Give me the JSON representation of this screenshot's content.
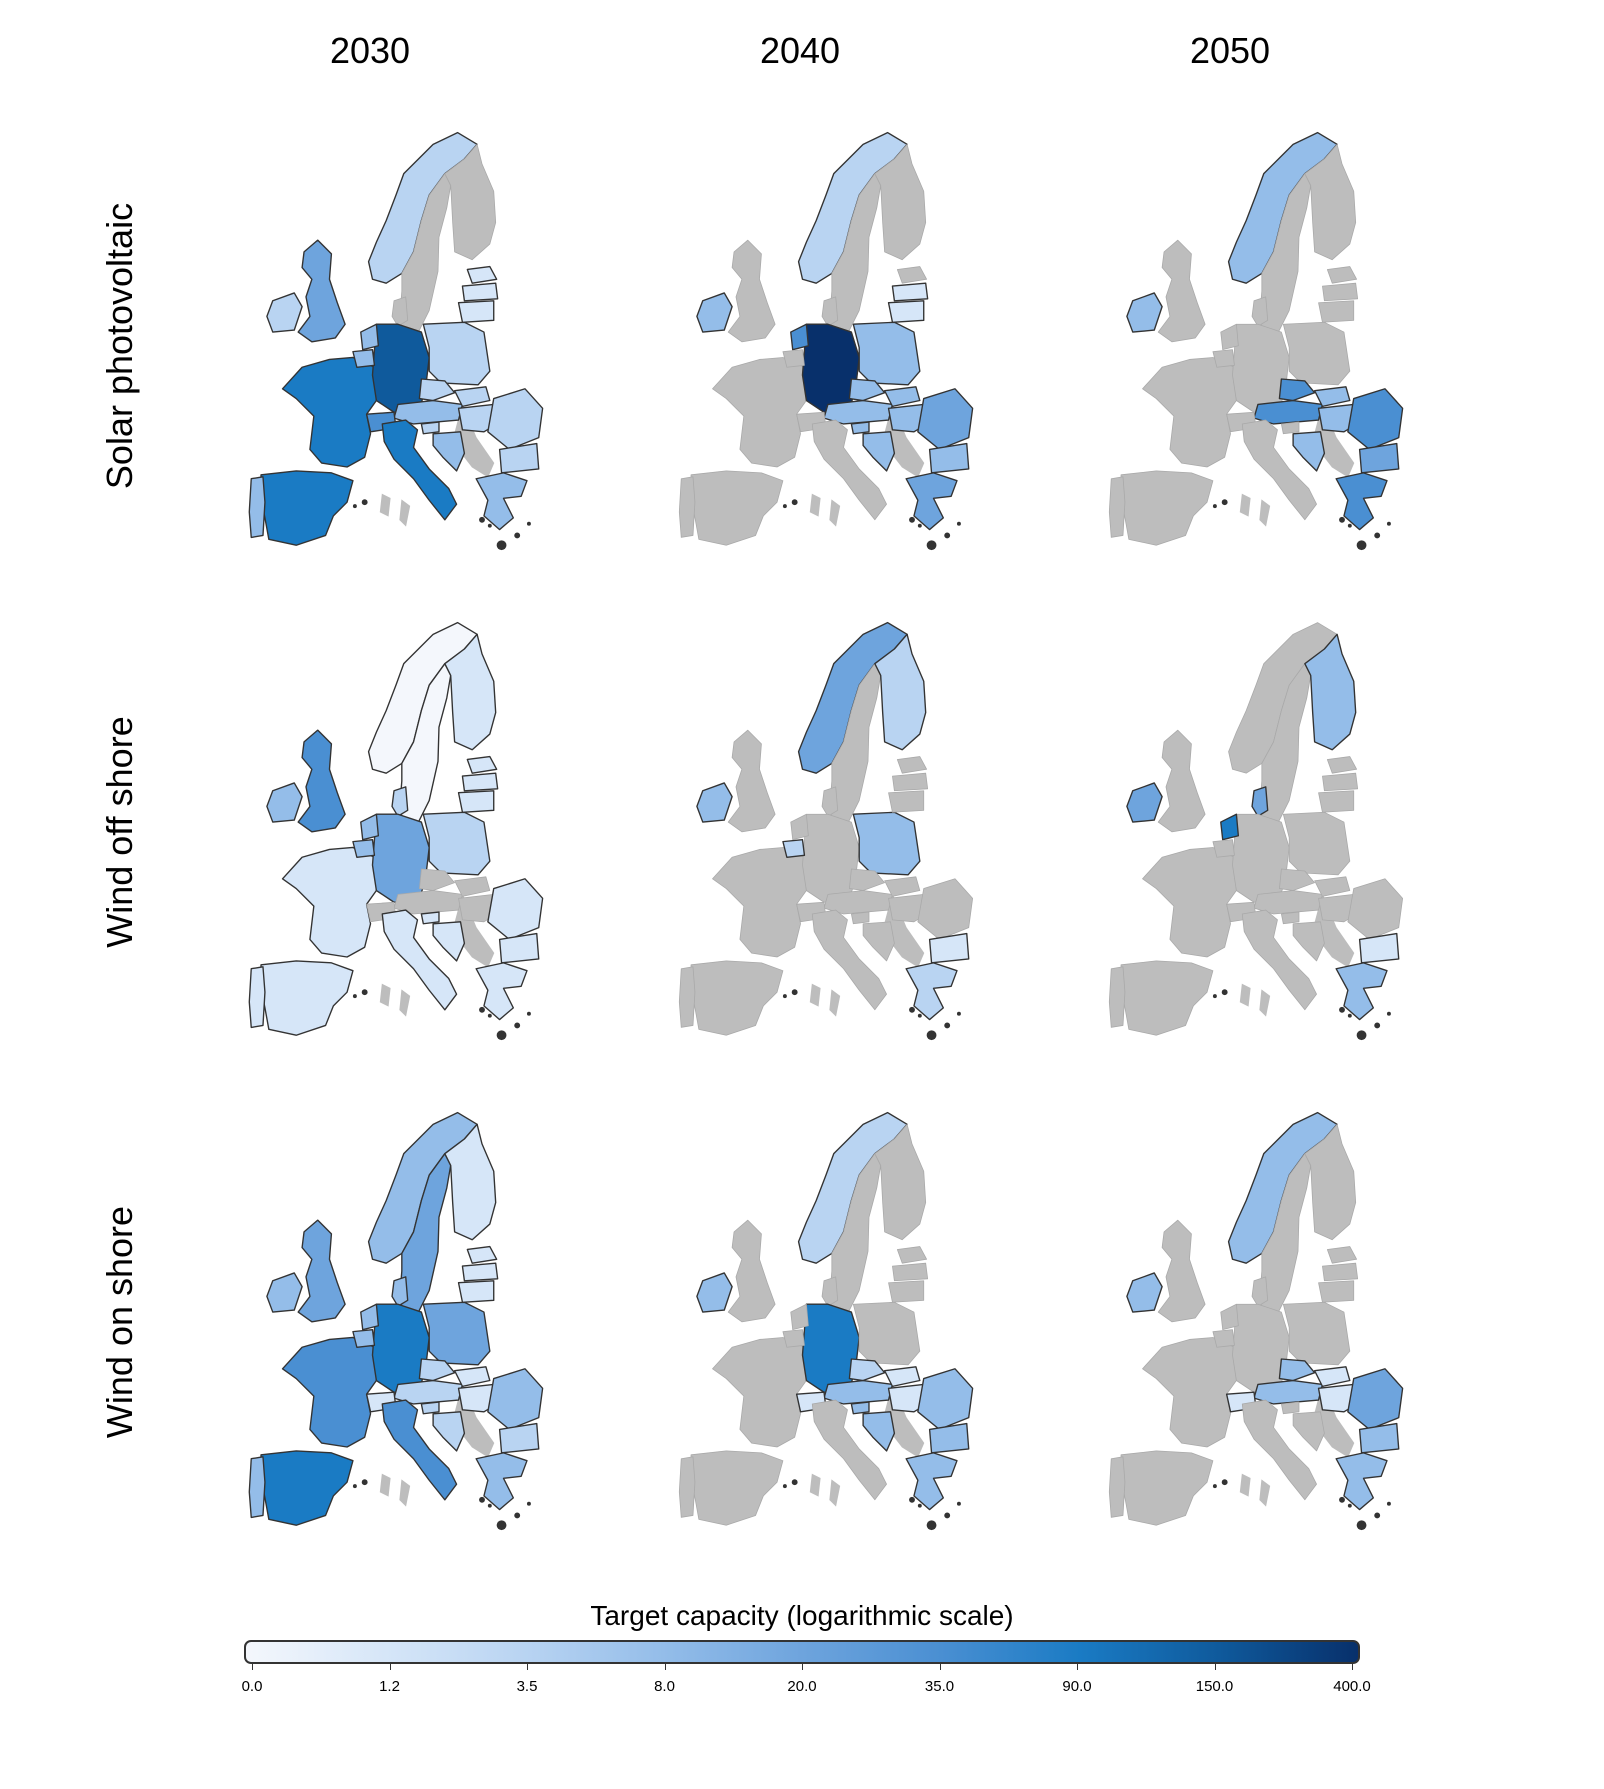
{
  "figure": {
    "columns": [
      "2030",
      "2040",
      "2050"
    ],
    "rows": [
      "Solar photovoltaic",
      "Wind off shore",
      "Wind on shore"
    ]
  },
  "legend": {
    "title": "Target capacity (logarithmic scale)",
    "ticks": [
      "0.0",
      "1.2",
      "3.5",
      "8.0",
      "20.0",
      "35.0",
      "90.0",
      "150.0",
      "400.0"
    ],
    "colors": [
      "#f4f7fc",
      "#d6e6f8",
      "#b9d4f2",
      "#94bde9",
      "#6ea4dd",
      "#4a8fd2",
      "#1a7bc4",
      "#0f5a9c",
      "#08306b"
    ],
    "no_data_color": "#bdbdbd"
  },
  "chart_data": {
    "type": "choropleth",
    "scale": "log",
    "regions": [
      "NO",
      "SE",
      "FI",
      "DK",
      "GB",
      "IE",
      "FR",
      "ES",
      "PT",
      "DE",
      "NL",
      "BE",
      "PL",
      "CZ",
      "AT",
      "CH",
      "IT",
      "SI",
      "HR",
      "SK",
      "HU",
      "RO",
      "BG",
      "GR",
      "LT",
      "LV",
      "EE"
    ],
    "panels": [
      {
        "technology": "Solar photovoltaic",
        "year": "2030",
        "values": {
          "NO": 3.5,
          "IE": 3.5,
          "GB": 20,
          "FR": 90,
          "ES": 90,
          "PT": 8,
          "DE": 150,
          "NL": 8,
          "BE": 8,
          "PL": 3.5,
          "CZ": 3.5,
          "AT": 8,
          "CH": 35,
          "IT": 90,
          "SI": 3.5,
          "HR": 8,
          "SK": 3.5,
          "HU": 3.5,
          "RO": 3.5,
          "BG": 3.5,
          "GR": 8,
          "LT": 1.2,
          "LV": 1.2,
          "EE": 1.2
        }
      },
      {
        "technology": "Solar photovoltaic",
        "year": "2040",
        "values": {
          "NO": 3.5,
          "IE": 8,
          "DE": 400,
          "NL": 35,
          "PL": 8,
          "CZ": 8,
          "AT": 8,
          "SI": 8,
          "HR": 8,
          "SK": 8,
          "HU": 8,
          "RO": 20,
          "BG": 8,
          "GR": 20,
          "LT": 1.2,
          "LV": 1.2
        }
      },
      {
        "technology": "Solar photovoltaic",
        "year": "2050",
        "values": {
          "NO": 8,
          "IE": 8,
          "CZ": 35,
          "AT": 35,
          "SK": 8,
          "HU": 8,
          "HR": 8,
          "RO": 35,
          "BG": 20,
          "GR": 35
        }
      },
      {
        "technology": "Wind off shore",
        "year": "2030",
        "values": {
          "NO": 0,
          "SE": 0,
          "FI": 1.2,
          "DK": 3.5,
          "GB": 35,
          "IE": 8,
          "FR": 1.2,
          "ES": 1.2,
          "PT": 1.2,
          "DE": 20,
          "NL": 8,
          "BE": 8,
          "PL": 3.5,
          "IT": 1.2,
          "SI": 1.2,
          "HR": 1.2,
          "GR": 1.2,
          "BG": 1.2,
          "RO": 1.2,
          "LT": 1.2,
          "LV": 1.2,
          "EE": 1.2
        }
      },
      {
        "technology": "Wind off shore",
        "year": "2040",
        "values": {
          "NO": 20,
          "FI": 3.5,
          "IE": 8,
          "BE": 3.5,
          "PL": 8,
          "GR": 3.5,
          "BG": 1.2
        }
      },
      {
        "technology": "Wind off shore",
        "year": "2050",
        "values": {
          "FI": 8,
          "DK": 20,
          "NL": 90,
          "IE": 20,
          "GR": 8,
          "BG": 1.2
        }
      },
      {
        "technology": "Wind on shore",
        "year": "2030",
        "values": {
          "NO": 8,
          "SE": 20,
          "FI": 1.2,
          "DK": 8,
          "GB": 20,
          "IE": 8,
          "FR": 35,
          "ES": 90,
          "PT": 8,
          "DE": 90,
          "NL": 8,
          "BE": 8,
          "PL": 20,
          "CZ": 3.5,
          "AT": 3.5,
          "CH": 1.2,
          "IT": 35,
          "SI": 3.5,
          "HR": 3.5,
          "SK": 1.2,
          "HU": 1.2,
          "RO": 8,
          "BG": 3.5,
          "GR": 8,
          "LT": 1.2,
          "LV": 1.2,
          "EE": 1.2
        }
      },
      {
        "technology": "Wind on shore",
        "year": "2040",
        "values": {
          "NO": 3.5,
          "IE": 8,
          "DE": 90,
          "CZ": 3.5,
          "CH": 1.2,
          "AT": 8,
          "SK": 1.2,
          "HU": 1.2,
          "RO": 8,
          "BG": 8,
          "GR": 8,
          "HR": 8,
          "SI": 8
        }
      },
      {
        "technology": "Wind on shore",
        "year": "2050",
        "values": {
          "NO": 8,
          "IE": 8,
          "CZ": 8,
          "AT": 8,
          "CH": 1.2,
          "SK": 1.2,
          "HU": 1.2,
          "RO": 20,
          "BG": 8,
          "GR": 8
        }
      }
    ]
  }
}
